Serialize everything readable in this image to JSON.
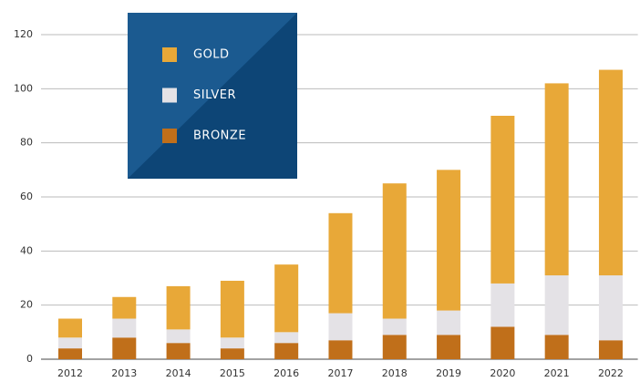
{
  "chart_data": {
    "type": "stacked_bar",
    "categories": [
      "2012",
      "2013",
      "2014",
      "2015",
      "2016",
      "2017",
      "2018",
      "2019",
      "2020",
      "2021",
      "2022"
    ],
    "series": [
      {
        "name": "BRONZE",
        "color": "#c06f1a",
        "values": [
          4,
          8,
          6,
          4,
          6,
          7,
          9,
          9,
          12,
          9,
          7
        ]
      },
      {
        "name": "SILVER",
        "color": "#e4e2e6",
        "values": [
          4,
          7,
          5,
          4,
          4,
          10,
          6,
          9,
          16,
          22,
          24
        ]
      },
      {
        "name": "GOLD",
        "color": "#e8a838",
        "values": [
          7,
          8,
          16,
          21,
          25,
          37,
          50,
          52,
          62,
          71,
          76
        ]
      }
    ],
    "ylim": [
      0,
      120
    ],
    "yticks": [
      0,
      20,
      40,
      60,
      80,
      100,
      120
    ],
    "grid": true,
    "legend": "upper left"
  }
}
